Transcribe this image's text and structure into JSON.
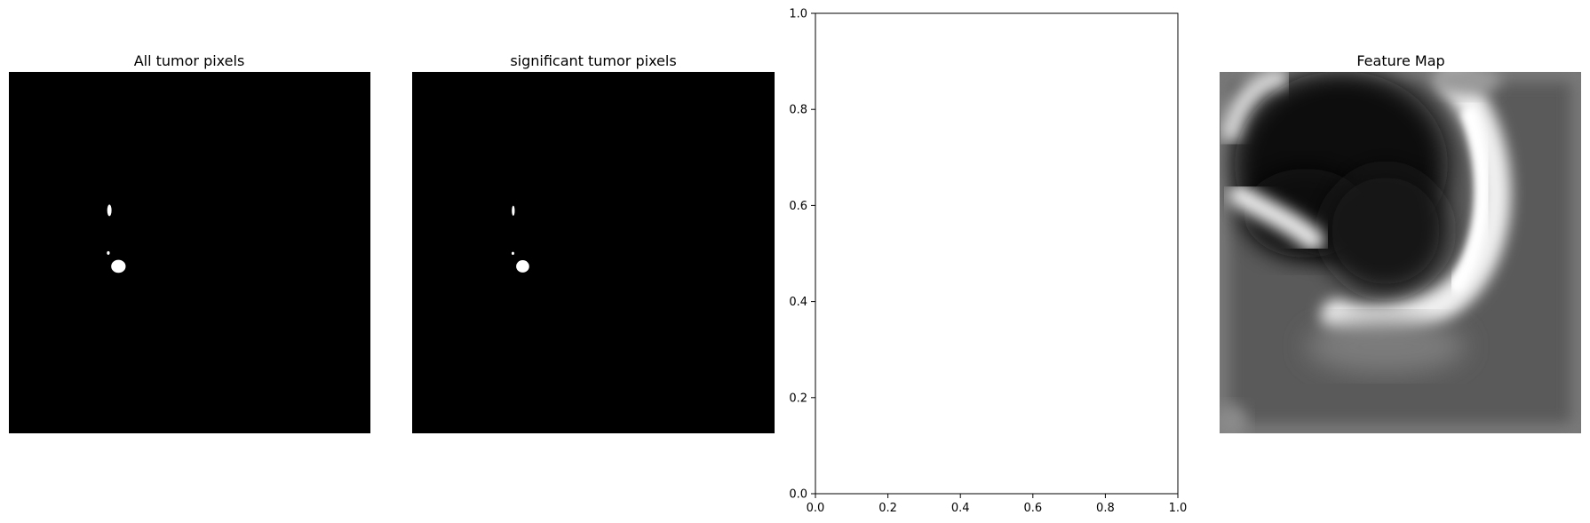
{
  "figure": {
    "panels": [
      {
        "title": "All tumor pixels"
      },
      {
        "title": "significant tumor pixels"
      },
      {
        "title": ""
      },
      {
        "title": "Feature Map"
      }
    ]
  },
  "chart_data": [
    {
      "type": "heatmap",
      "title": "All tumor pixels",
      "colormap": "gray",
      "background": "#000000",
      "blobs": [
        {
          "label": "tumor region upper",
          "cx": 0.278,
          "cy": 0.383,
          "rx": 0.006,
          "ry": 0.016
        },
        {
          "label": "tumor speck",
          "cx": 0.275,
          "cy": 0.501,
          "rx": 0.004,
          "ry": 0.005
        },
        {
          "label": "tumor region lower",
          "cx": 0.303,
          "cy": 0.538,
          "rx": 0.02,
          "ry": 0.018
        }
      ]
    },
    {
      "type": "heatmap",
      "title": "significant tumor pixels",
      "colormap": "gray",
      "background": "#000000",
      "blobs": [
        {
          "label": "significant region upper",
          "cx": 0.279,
          "cy": 0.384,
          "rx": 0.004,
          "ry": 0.014
        },
        {
          "label": "significant speck",
          "cx": 0.278,
          "cy": 0.502,
          "rx": 0.003,
          "ry": 0.004
        },
        {
          "label": "significant region lower",
          "cx": 0.305,
          "cy": 0.538,
          "rx": 0.018,
          "ry": 0.017
        }
      ]
    },
    {
      "type": "scatter",
      "title": "",
      "xlabel": "",
      "ylabel": "",
      "xlim": [
        0.0,
        1.0
      ],
      "ylim": [
        0.0,
        1.0
      ],
      "xticks": [
        "0.0",
        "0.2",
        "0.4",
        "0.6",
        "0.8",
        "1.0"
      ],
      "yticks": [
        "0.0",
        "0.2",
        "0.4",
        "0.6",
        "0.8",
        "1.0"
      ],
      "series": [],
      "grid": false
    },
    {
      "type": "heatmap",
      "title": "Feature Map",
      "colormap": "gray",
      "background": "#585858"
    }
  ]
}
